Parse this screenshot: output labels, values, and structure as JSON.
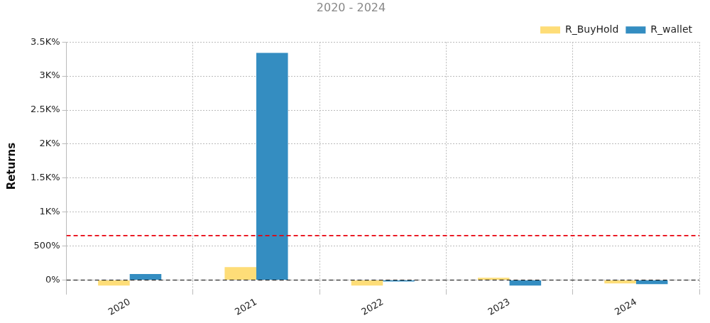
{
  "chart_data": {
    "type": "bar",
    "title": "2020 - 2024",
    "y_label": "Returns",
    "categories": [
      "2020",
      "2021",
      "2022",
      "2023",
      "2024"
    ],
    "series": [
      {
        "name": "R_BuyHold",
        "color": "#fedd78",
        "values": [
          -80,
          190,
          -80,
          35,
          -50
        ]
      },
      {
        "name": "R_wallet",
        "color": "#348dc1",
        "values": [
          90,
          3340,
          -20,
          -80,
          -60
        ]
      }
    ],
    "ylim": [
      -150,
      3500
    ],
    "yticks": [
      {
        "value": 0,
        "label": "0%"
      },
      {
        "value": 500,
        "label": "500%"
      },
      {
        "value": 1000,
        "label": "1K%"
      },
      {
        "value": 1500,
        "label": "1.5K%"
      },
      {
        "value": 2000,
        "label": "2K%"
      },
      {
        "value": 2500,
        "label": "2.5K%"
      },
      {
        "value": 3000,
        "label": "3K%"
      },
      {
        "value": 3500,
        "label": "3.5K%"
      }
    ],
    "mean_line": {
      "value": 654,
      "color": "#e8000b",
      "line_style": "dashed"
    },
    "baseline": {
      "value": 0,
      "color": "#000000",
      "line_style": "dashed"
    },
    "grid": true,
    "legend": "upper right"
  }
}
